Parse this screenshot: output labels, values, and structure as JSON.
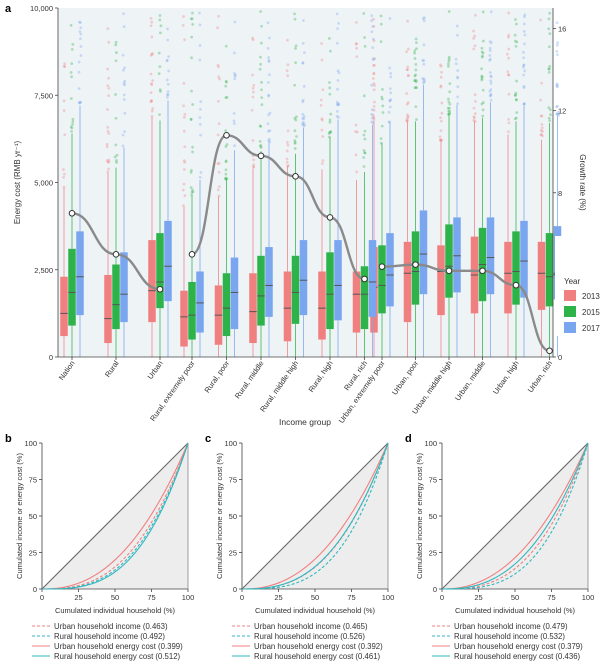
{
  "chart_data": [
    {
      "panel": "a",
      "type": "box",
      "xlabel": "Income group",
      "ylabel": "Energy cost (RMB yr⁻¹)",
      "y2label": "Growth rate (%)",
      "ylim": [
        0,
        10000
      ],
      "y2lim": [
        0,
        17
      ],
      "yticks": [
        "0",
        "2,500",
        "5,000",
        "7,500",
        "10,000"
      ],
      "y2ticks": [
        "0",
        "4",
        "8",
        "12",
        "16"
      ],
      "categories": [
        "Nation",
        "Rural",
        "Urban",
        "Rural, extremely poor",
        "Rural, poor",
        "Rural, middle",
        "Rural, middle high",
        "Rural, high",
        "Rural, rich",
        "Urban, extremely poor",
        "Urban, poor",
        "Urban, middle high",
        "Urban, middle",
        "Urban, high",
        "Urban, rich"
      ],
      "legend_title": "Year",
      "legend": [
        "2013",
        "2015",
        "2017"
      ],
      "colors": [
        "#f08080",
        "#2db34a",
        "#7aa6ef"
      ],
      "series": [
        {
          "name": "2013",
          "q1": [
            600,
            400,
            1000,
            300,
            350,
            400,
            450,
            500,
            700,
            700,
            1000,
            1200,
            1250,
            1250,
            1350
          ],
          "median": [
            1250,
            1100,
            1900,
            1150,
            1200,
            1300,
            1400,
            1400,
            1800,
            2000,
            2400,
            2450,
            2350,
            2400,
            2400
          ],
          "q3": [
            2300,
            2350,
            3350,
            1900,
            2050,
            2400,
            2450,
            2450,
            2450,
            3150,
            3300,
            3200,
            3450,
            3300,
            3300
          ]
        },
        {
          "name": "2015",
          "q1": [
            900,
            800,
            1400,
            500,
            600,
            900,
            950,
            800,
            800,
            1250,
            1500,
            1700,
            1600,
            1500,
            1450
          ],
          "median": [
            1850,
            1500,
            2150,
            1200,
            1400,
            1750,
            1850,
            1800,
            1800,
            2050,
            2450,
            2600,
            2650,
            2450,
            2300
          ],
          "q3": [
            3100,
            2650,
            3550,
            2150,
            2400,
            2900,
            2900,
            3000,
            2600,
            3200,
            3600,
            3800,
            3700,
            3600,
            3550
          ]
        },
        {
          "name": "2017",
          "q1": [
            1200,
            1000,
            1600,
            700,
            800,
            1150,
            1200,
            1050,
            1150,
            1450,
            1800,
            1850,
            1800,
            1700,
            1650
          ],
          "median": [
            2300,
            1800,
            2600,
            1550,
            1850,
            2050,
            2200,
            2050,
            2150,
            2350,
            2950,
            2900,
            2850,
            2750,
            2400
          ],
          "q3": [
            3600,
            3000,
            3900,
            2450,
            2850,
            3150,
            3350,
            3350,
            3350,
            3550,
            4200,
            4000,
            4000,
            3900,
            3750
          ]
        }
      ],
      "growth_rate": [
        {
          "group": "national",
          "values": [
            7.0,
            5.0,
            3.3
          ]
        },
        {
          "group": "rural",
          "values": [
            5.0,
            10.8,
            9.8,
            8.8,
            6.8,
            3.8
          ]
        },
        {
          "group": "urban",
          "values": [
            4.4,
            4.5,
            4.2,
            4.2,
            3.5,
            0.3
          ]
        }
      ]
    },
    {
      "panel": "b",
      "type": "line",
      "xlabel": "Cumulated individual household (%)",
      "ylabel": "Cumulated income or energy cost (%)",
      "xticks": [
        "0",
        "25",
        "50",
        "75",
        "100"
      ],
      "yticks": [
        "0",
        "25",
        "50",
        "75",
        "100"
      ],
      "series": [
        {
          "name": "Urban household income (0.463)",
          "gini": 0.463
        },
        {
          "name": "Rural household income (0.492)",
          "gini": 0.492
        },
        {
          "name": "Urban household energy cost (0.399)",
          "gini": 0.399
        },
        {
          "name": "Rural household energy cost (0.512)",
          "gini": 0.512
        }
      ]
    },
    {
      "panel": "c",
      "type": "line",
      "xlabel": "Cumulated individual household (%)",
      "ylabel": "Cumulated income or energy cost (%)",
      "xticks": [
        "0",
        "25",
        "50",
        "75",
        "100"
      ],
      "yticks": [
        "0",
        "25",
        "50",
        "75",
        "100"
      ],
      "series": [
        {
          "name": "Urban household income (0.465)",
          "gini": 0.465
        },
        {
          "name": "Rural household income (0.526)",
          "gini": 0.526
        },
        {
          "name": "Urban household energy cost (0.392)",
          "gini": 0.392
        },
        {
          "name": "Rural household energy cost (0.461)",
          "gini": 0.461
        }
      ]
    },
    {
      "panel": "d",
      "type": "line",
      "xlabel": "Cumulated individual household (%)",
      "ylabel": "Cumulated income or energy cost (%)",
      "xticks": [
        "0",
        "25",
        "50",
        "75",
        "100"
      ],
      "yticks": [
        "0",
        "25",
        "50",
        "75",
        "100"
      ],
      "series": [
        {
          "name": "Urban household income (0.479)",
          "gini": 0.479
        },
        {
          "name": "Rural household income (0.532)",
          "gini": 0.532
        },
        {
          "name": "Urban household energy cost (0.379)",
          "gini": 0.379
        },
        {
          "name": "Rural household energy cost (0.436)",
          "gini": 0.436
        }
      ]
    }
  ],
  "lorenz_style": {
    "colors": [
      "#f08080",
      "#2fb8c0",
      "#f08080",
      "#2fb8c0"
    ],
    "dashed": [
      true,
      true,
      false,
      false
    ]
  }
}
